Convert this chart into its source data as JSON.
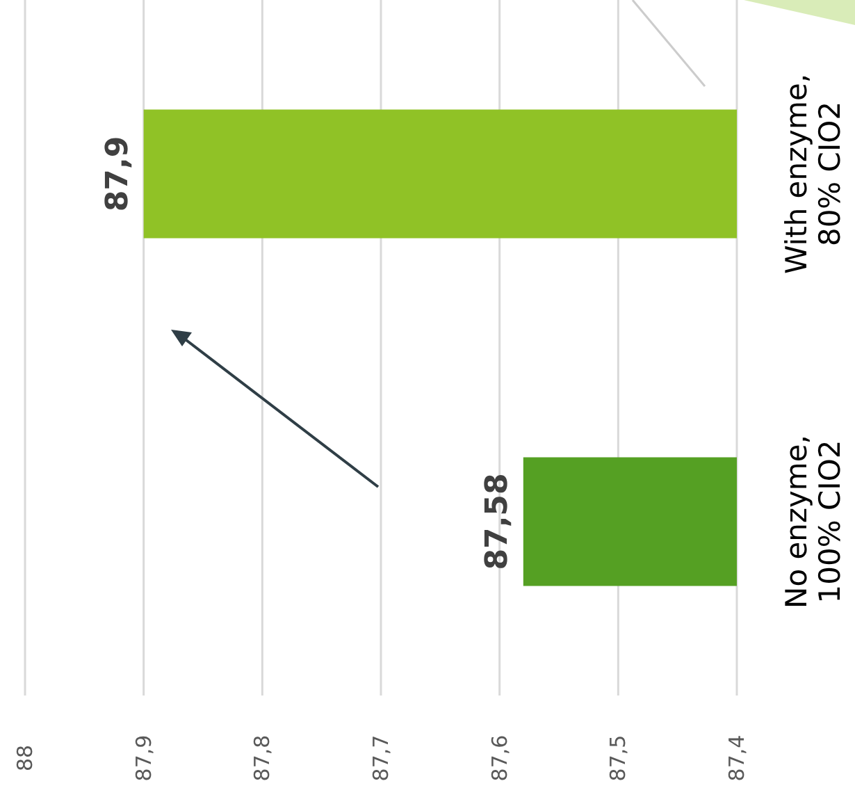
{
  "chart_data": {
    "type": "bar",
    "orientation": "horizontal",
    "categories": [
      "With enzyme, 80% CIO2",
      "No enzyme, 100% CIO2"
    ],
    "values": [
      87.9,
      87.58
    ],
    "colors": [
      "#90c226",
      "#55a023"
    ],
    "value_labels": [
      "87,9",
      "87,58"
    ],
    "xlim": [
      88,
      87.4
    ],
    "xticks": [
      {
        "value": 88,
        "label": "88"
      },
      {
        "value": 87.9,
        "label": "87,9"
      },
      {
        "value": 87.8,
        "label": "87,8"
      },
      {
        "value": 87.7,
        "label": "87,7"
      },
      {
        "value": 87.6,
        "label": "87,6"
      },
      {
        "value": 87.5,
        "label": "87,5"
      },
      {
        "value": 87.4,
        "label": "87,4"
      }
    ],
    "grid": "x"
  }
}
